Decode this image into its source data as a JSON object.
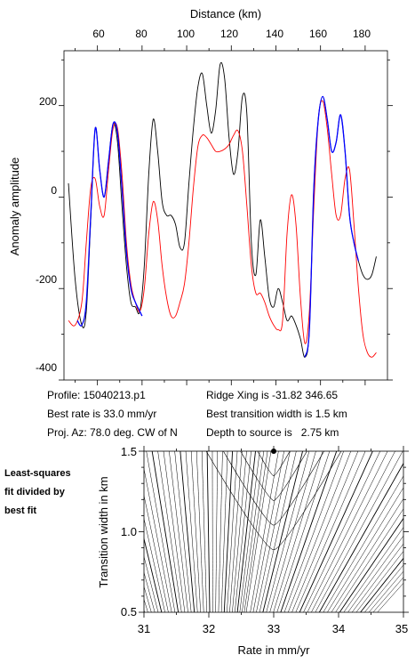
{
  "chart_data": [
    {
      "type": "line",
      "xlabel": "Distance (km)",
      "ylabel": "Anomaly amplitude",
      "xlim": [
        45,
        190
      ],
      "ylim": [
        -400,
        320
      ],
      "xticks": [
        60,
        80,
        100,
        120,
        140,
        160,
        180
      ],
      "yticks": [
        -400,
        -200,
        0,
        200
      ],
      "grid": false,
      "series": [
        {
          "color": "#000000",
          "x": [
            47,
            50,
            53,
            55,
            57,
            59,
            61,
            63,
            65,
            67,
            69,
            71,
            73,
            75,
            77,
            79,
            81,
            83,
            85,
            87,
            89,
            91,
            93,
            95,
            97,
            99,
            101,
            103,
            105,
            107,
            109,
            111,
            113,
            115,
            117,
            119,
            121,
            123,
            125,
            127,
            129,
            131,
            133,
            135,
            137,
            139,
            141,
            143,
            145,
            147,
            149,
            151,
            153,
            155,
            157,
            159,
            161,
            163,
            165,
            167,
            169,
            171,
            173,
            175,
            177,
            179,
            181,
            183,
            185
          ],
          "y": [
            30,
            -180,
            -280,
            -250,
            -50,
            150,
            60,
            0,
            80,
            160,
            120,
            -20,
            -150,
            -230,
            -240,
            -250,
            -150,
            50,
            170,
            100,
            -10,
            -40,
            -40,
            -60,
            -110,
            -100,
            30,
            150,
            240,
            270,
            200,
            140,
            190,
            290,
            260,
            130,
            50,
            100,
            220,
            180,
            -100,
            -170,
            -50,
            -130,
            -220,
            -240,
            -200,
            -230,
            -270,
            -260,
            -280,
            -310,
            -350,
            -290,
            20,
            170,
            220,
            170,
            100,
            120,
            180,
            100,
            -40,
            -100,
            -140,
            -170,
            -180,
            -170,
            -130
          ]
        },
        {
          "color": "#ff0000",
          "x": [
            47,
            50,
            53,
            55,
            57,
            59,
            61,
            63,
            65,
            67,
            69,
            71,
            73,
            75,
            77,
            79,
            81,
            83,
            85,
            87,
            89,
            91,
            93,
            95,
            97,
            99,
            101,
            103,
            105,
            107,
            109,
            111,
            113,
            115,
            117,
            119,
            121,
            123,
            125,
            127,
            129,
            131,
            133,
            135,
            137,
            139,
            141,
            143,
            145,
            147,
            149,
            151,
            153,
            155,
            157,
            159,
            161,
            163,
            165,
            167,
            169,
            171,
            173,
            175,
            177,
            179,
            181,
            183,
            185
          ],
          "y": [
            -270,
            -280,
            -230,
            -100,
            20,
            40,
            -20,
            -40,
            60,
            150,
            150,
            50,
            -100,
            -190,
            -230,
            -250,
            -200,
            -80,
            -10,
            -50,
            -150,
            -220,
            -260,
            -260,
            -230,
            -190,
            -100,
            20,
            110,
            135,
            130,
            115,
            100,
            100,
            105,
            115,
            135,
            145,
            100,
            -20,
            -150,
            -210,
            -210,
            -230,
            -260,
            -280,
            -290,
            -270,
            -80,
            5,
            -60,
            -220,
            -320,
            -250,
            -20,
            170,
            210,
            150,
            50,
            -40,
            -40,
            40,
            60,
            -60,
            -200,
            -300,
            -340,
            -350,
            -340
          ]
        },
        {
          "color": "#0000ff",
          "x": [
            51,
            53,
            55,
            57,
            59,
            61,
            63,
            65,
            67,
            69,
            71,
            73,
            75,
            77,
            79,
            80
          ],
          "y": [
            -270,
            -280,
            -230,
            -40,
            150,
            60,
            0,
            80,
            160,
            140,
            20,
            -120,
            -200,
            -230,
            -250,
            -260
          ]
        },
        {
          "color": "#0000ff",
          "x": [
            153,
            155,
            157,
            159,
            161,
            163,
            165,
            167,
            169,
            171,
            173,
            175,
            177
          ],
          "y": [
            -350,
            -290,
            20,
            170,
            220,
            170,
            100,
            120,
            180,
            100,
            -40,
            -100,
            -140
          ]
        }
      ]
    },
    {
      "type": "contour",
      "xlabel": "Rate in mm/yr",
      "ylabel": "Transition width in km",
      "xlim": [
        31,
        35
      ],
      "ylim": [
        0.5,
        1.5
      ],
      "xticks": [
        31,
        32,
        33,
        34,
        35
      ],
      "yticks": [
        0.5,
        1.0,
        1.5
      ],
      "best_point": {
        "x": 33.0,
        "y": 1.5
      }
    }
  ],
  "info": {
    "profile": "Profile: 15040213.p1",
    "best_rate": "Best rate is 33.0 mm/yr",
    "proj_az": "Proj. Az: 78.0 deg. CW of N",
    "ridge_xing": "Ridge Xing is -31.82 346.65",
    "best_width": "Best transition width is 1.5 km",
    "depth": "Depth to source is   2.75 km"
  },
  "side_note": {
    "line1": "Least-squares",
    "line2": "fit divided by",
    "line3": "best fit"
  },
  "tick_labels": {
    "top_x": [
      "60",
      "80",
      "100",
      "120",
      "140",
      "160",
      "180"
    ],
    "top_y": [
      "-400",
      "-200",
      "0",
      "200"
    ],
    "bottom_x": [
      "31",
      "32",
      "33",
      "34",
      "35"
    ],
    "bottom_y": [
      "0.5",
      "1.0",
      "1.5"
    ]
  }
}
